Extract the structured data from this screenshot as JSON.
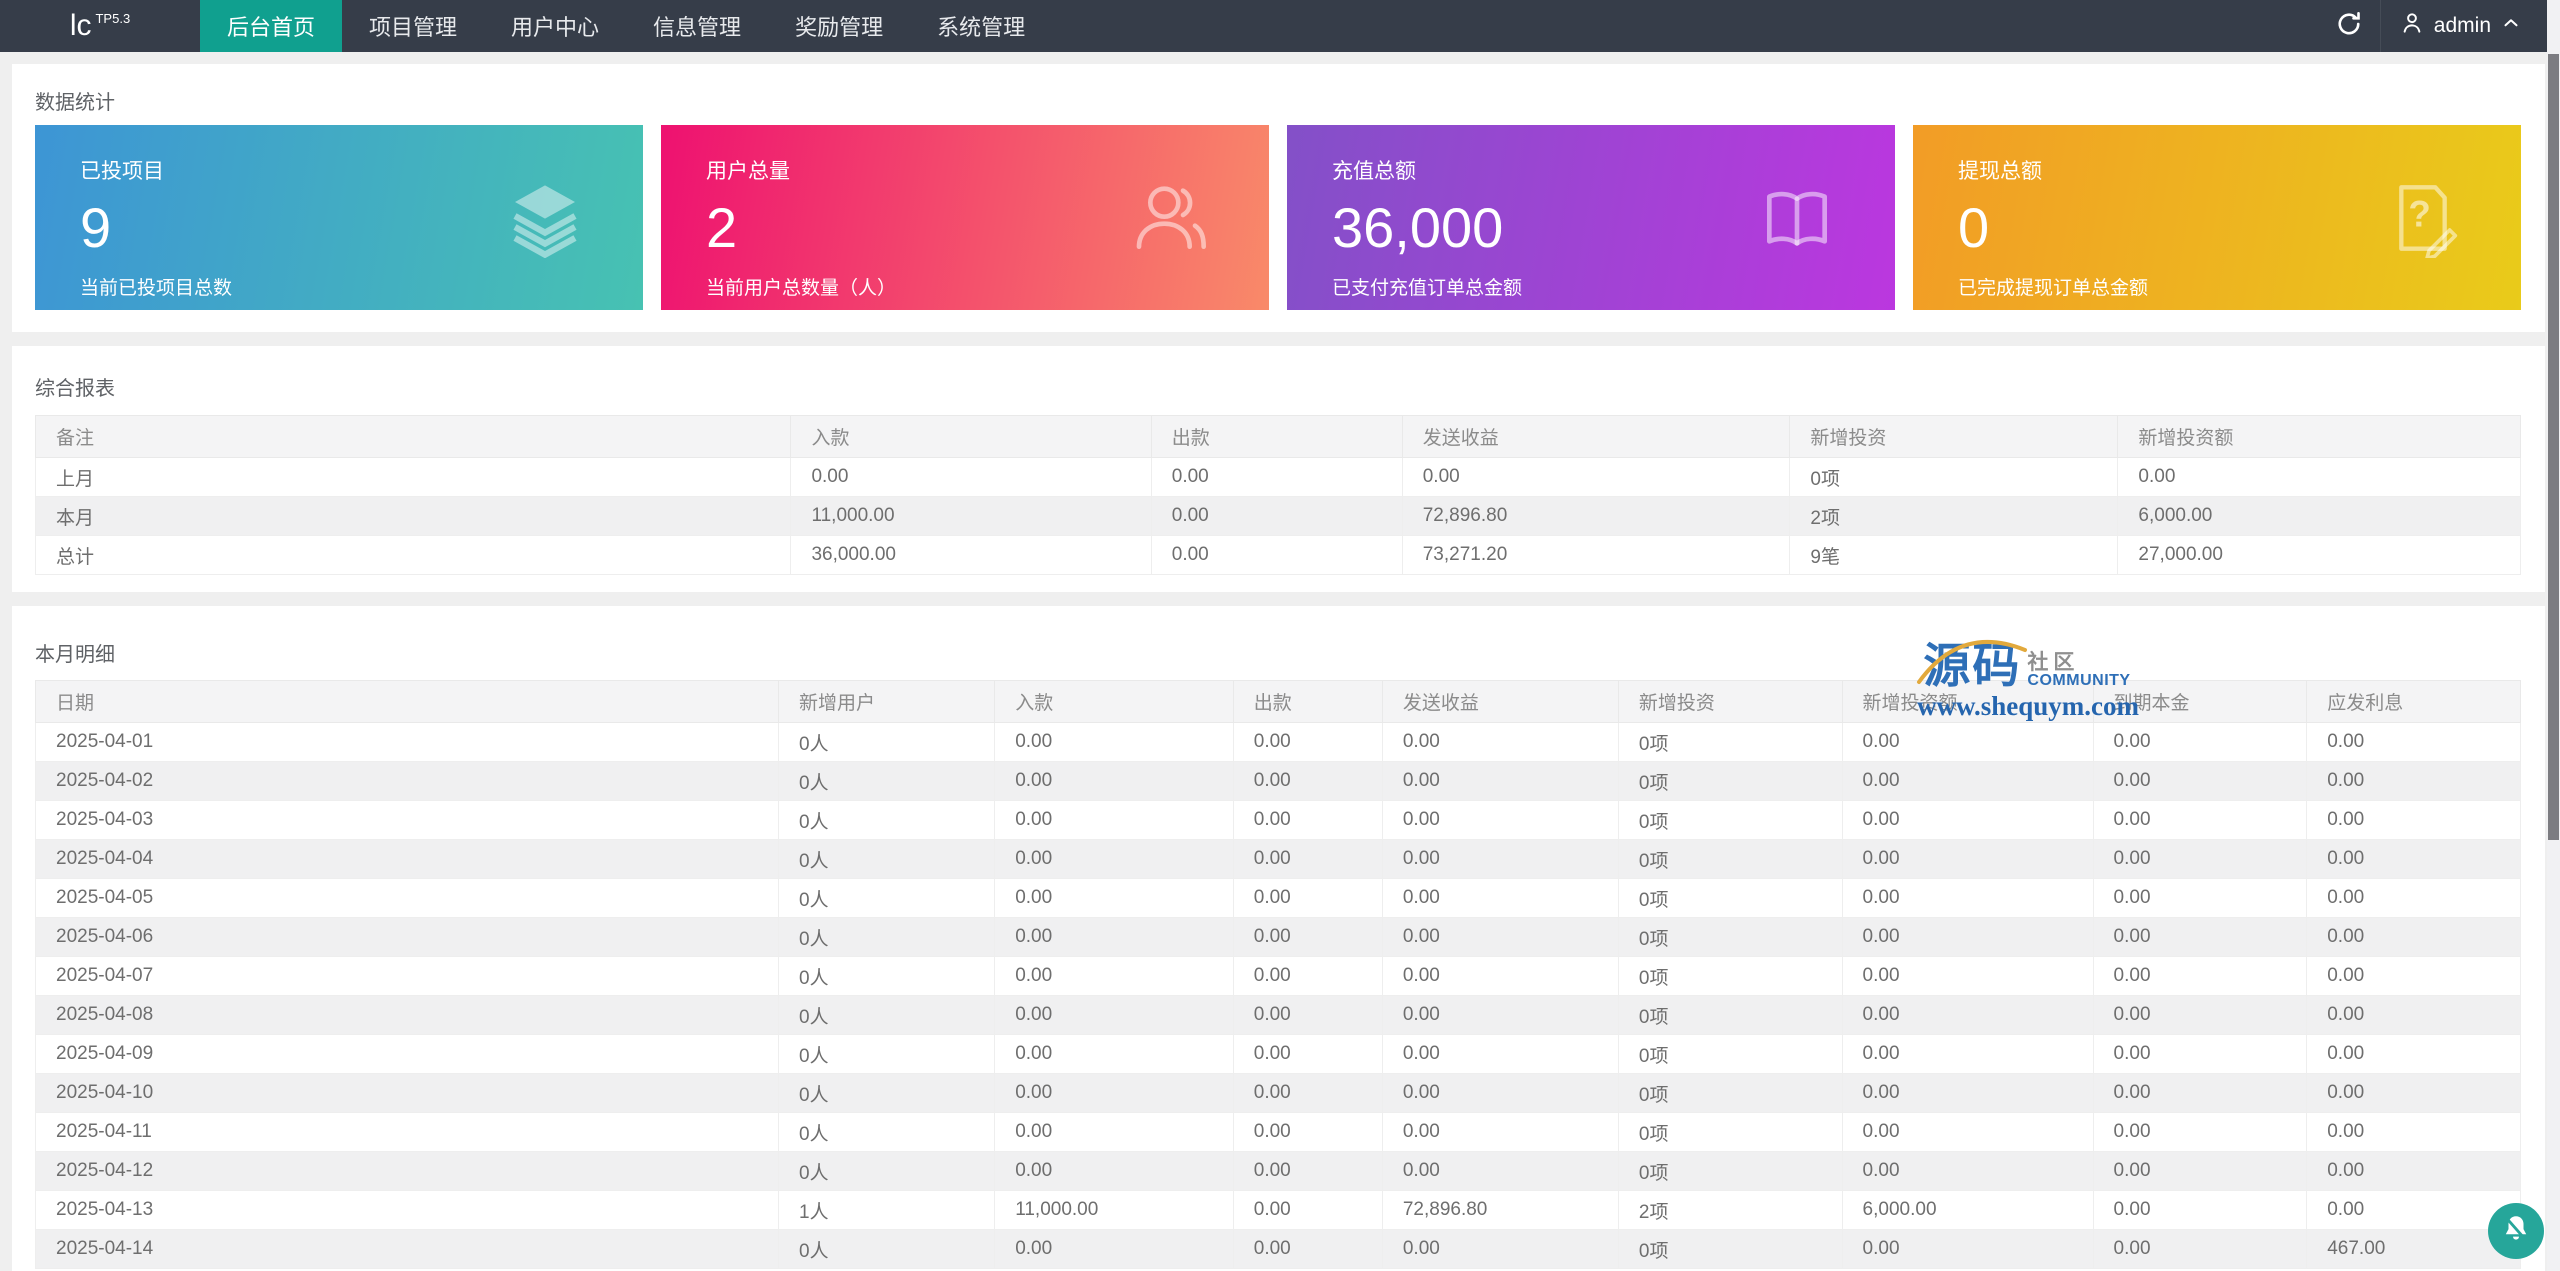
{
  "navbar": {
    "logo": "lc",
    "logo_sup": "TP5.3",
    "menu": [
      {
        "label": "后台首页",
        "active": true
      },
      {
        "label": "项目管理",
        "active": false
      },
      {
        "label": "用户中心",
        "active": false
      },
      {
        "label": "信息管理",
        "active": false
      },
      {
        "label": "奖励管理",
        "active": false
      },
      {
        "label": "系统管理",
        "active": false
      }
    ],
    "user": "admin",
    "colors": {
      "bar": "#363d49",
      "active_item": "#10a08f"
    }
  },
  "stats_section": {
    "title": "数据统计",
    "cards": [
      {
        "title": "已投项目",
        "value": "9",
        "subtitle": "当前已投项目总数",
        "icon": "layers-icon",
        "gradient": [
          "#3d95d5",
          "#47c2b2"
        ]
      },
      {
        "title": "用户总量",
        "value": "2",
        "subtitle": "当前用户总数量（人）",
        "icon": "users-icon",
        "gradient": [
          "#ee1170",
          "#f98a69"
        ]
      },
      {
        "title": "充值总额",
        "value": "36,000",
        "subtitle": "已支付充值订单总金额",
        "icon": "book-icon",
        "gradient": [
          "#8350c8",
          "#bb37df"
        ]
      },
      {
        "title": "提现总额",
        "value": "0",
        "subtitle": "已完成提现订单总金额",
        "icon": "file-question-icon",
        "gradient": [
          "#f29c26",
          "#e9cb1a"
        ]
      }
    ]
  },
  "report_section": {
    "title": "综合报表",
    "columns": [
      "备注",
      "入款",
      "出款",
      "发送收益",
      "新增投资",
      "新增投资额"
    ],
    "rows": [
      [
        "上月",
        "0.00",
        "0.00",
        "0.00",
        "0项",
        "0.00"
      ],
      [
        "本月",
        "11,000.00",
        "0.00",
        "72,896.80",
        "2项",
        "6,000.00"
      ],
      [
        "总计",
        "36,000.00",
        "0.00",
        "73,271.20",
        "9笔",
        "27,000.00"
      ]
    ]
  },
  "detail_section": {
    "title": "本月明细",
    "columns": [
      "日期",
      "新增用户",
      "入款",
      "出款",
      "发送收益",
      "新增投资",
      "新增投资额",
      "到期本金",
      "应发利息"
    ],
    "rows": [
      [
        "2025-04-01",
        "0人",
        "0.00",
        "0.00",
        "0.00",
        "0项",
        "0.00",
        "0.00",
        "0.00"
      ],
      [
        "2025-04-02",
        "0人",
        "0.00",
        "0.00",
        "0.00",
        "0项",
        "0.00",
        "0.00",
        "0.00"
      ],
      [
        "2025-04-03",
        "0人",
        "0.00",
        "0.00",
        "0.00",
        "0项",
        "0.00",
        "0.00",
        "0.00"
      ],
      [
        "2025-04-04",
        "0人",
        "0.00",
        "0.00",
        "0.00",
        "0项",
        "0.00",
        "0.00",
        "0.00"
      ],
      [
        "2025-04-05",
        "0人",
        "0.00",
        "0.00",
        "0.00",
        "0项",
        "0.00",
        "0.00",
        "0.00"
      ],
      [
        "2025-04-06",
        "0人",
        "0.00",
        "0.00",
        "0.00",
        "0项",
        "0.00",
        "0.00",
        "0.00"
      ],
      [
        "2025-04-07",
        "0人",
        "0.00",
        "0.00",
        "0.00",
        "0项",
        "0.00",
        "0.00",
        "0.00"
      ],
      [
        "2025-04-08",
        "0人",
        "0.00",
        "0.00",
        "0.00",
        "0项",
        "0.00",
        "0.00",
        "0.00"
      ],
      [
        "2025-04-09",
        "0人",
        "0.00",
        "0.00",
        "0.00",
        "0项",
        "0.00",
        "0.00",
        "0.00"
      ],
      [
        "2025-04-10",
        "0人",
        "0.00",
        "0.00",
        "0.00",
        "0项",
        "0.00",
        "0.00",
        "0.00"
      ],
      [
        "2025-04-11",
        "0人",
        "0.00",
        "0.00",
        "0.00",
        "0项",
        "0.00",
        "0.00",
        "0.00"
      ],
      [
        "2025-04-12",
        "0人",
        "0.00",
        "0.00",
        "0.00",
        "0项",
        "0.00",
        "0.00",
        "0.00"
      ],
      [
        "2025-04-13",
        "1人",
        "11,000.00",
        "0.00",
        "72,896.80",
        "2项",
        "6,000.00",
        "0.00",
        "0.00"
      ],
      [
        "2025-04-14",
        "0人",
        "0.00",
        "0.00",
        "0.00",
        "0项",
        "0.00",
        "0.00",
        "467.00"
      ]
    ]
  },
  "watermark": {
    "brand": "源码",
    "brand_cn2": "社区",
    "brand_en": "COMMUNITY",
    "url": "www.shequym.com"
  }
}
